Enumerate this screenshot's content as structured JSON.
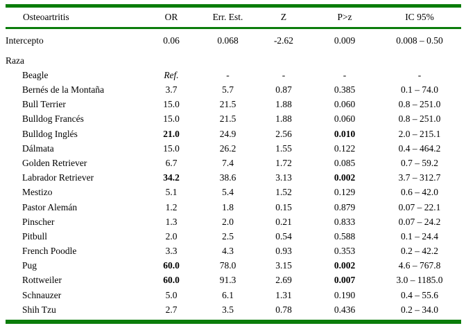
{
  "colors": {
    "rule_green": "#0b7d0b",
    "text": "#000000",
    "background": "#ffffff"
  },
  "table": {
    "headers": [
      "Osteoartritis",
      "OR",
      "Err. Est.",
      "Z",
      "P>z",
      "IC 95%"
    ],
    "intercept": {
      "label": "Intercepto",
      "or": "0.06",
      "err": "0.068",
      "z": "-2.62",
      "p": "0.009",
      "ic": "0.008 – 0.50"
    },
    "group_label": "Raza",
    "rows": [
      {
        "label": "Beagle",
        "or": "Ref.",
        "err": "-",
        "z": "-",
        "p": "-",
        "ic": "-"
      },
      {
        "label": "Bernés de la Montaña",
        "or": "3.7",
        "err": "5.7",
        "z": "0.87",
        "p": "0.385",
        "ic": "0.1 – 74.0"
      },
      {
        "label": "Bull Terrier",
        "or": "15.0",
        "err": "21.5",
        "z": "1.88",
        "p": "0.060",
        "ic": "0.8 – 251.0"
      },
      {
        "label": "Bulldog Francés",
        "or": "15.0",
        "err": "21.5",
        "z": "1.88",
        "p": "0.060",
        "ic": "0.8 – 251.0"
      },
      {
        "label": "Bulldog Inglés",
        "or": "21.0",
        "err": "24.9",
        "z": "2.56",
        "p": "0.010",
        "ic": "2.0 – 215.1"
      },
      {
        "label": "Dálmata",
        "or": "15.0",
        "err": "26.2",
        "z": "1.55",
        "p": "0.122",
        "ic": "0.4 – 464.2"
      },
      {
        "label": "Golden Retriever",
        "or": "6.7",
        "err": "7.4",
        "z": "1.72",
        "p": "0.085",
        "ic": "0.7 – 59.2"
      },
      {
        "label": "Labrador Retriever",
        "or": "34.2",
        "err": "38.6",
        "z": "3.13",
        "p": "0.002",
        "ic": "3.7 – 312.7"
      },
      {
        "label": "Mestizo",
        "or": "5.1",
        "err": "5.4",
        "z": "1.52",
        "p": "0.129",
        "ic": "0.6 – 42.0"
      },
      {
        "label": "Pastor Alemán",
        "or": "1.2",
        "err": "1.8",
        "z": "0.15",
        "p": "0.879",
        "ic": "0.07 – 22.1"
      },
      {
        "label": "Pinscher",
        "or": "1.3",
        "err": "2.0",
        "z": "0.21",
        "p": "0.833",
        "ic": "0.07 – 24.2"
      },
      {
        "label": "Pitbull",
        "or": "2.0",
        "err": "2.5",
        "z": "0.54",
        "p": "0.588",
        "ic": "0.1 – 24.4"
      },
      {
        "label": "French Poodle",
        "or": "3.3",
        "err": "4.3",
        "z": "0.93",
        "p": "0.353",
        "ic": "0.2 – 42.2"
      },
      {
        "label": "Pug",
        "or": "60.0",
        "err": "78.0",
        "z": "3.15",
        "p": "0.002",
        "ic": "4.6 – 767.8"
      },
      {
        "label": "Rottweiler",
        "or": "60.0",
        "err": "91.3",
        "z": "2.69",
        "p": "0.007",
        "ic": "3.0 – 1185.0"
      },
      {
        "label": "Schnauzer",
        "or": "5.0",
        "err": "6.1",
        "z": "1.31",
        "p": "0.190",
        "ic": "0.4 – 55.6"
      },
      {
        "label": "Shih Tzu",
        "or": "2.7",
        "err": "3.5",
        "z": "0.78",
        "p": "0.436",
        "ic": "0.2 – 34.0"
      }
    ]
  }
}
